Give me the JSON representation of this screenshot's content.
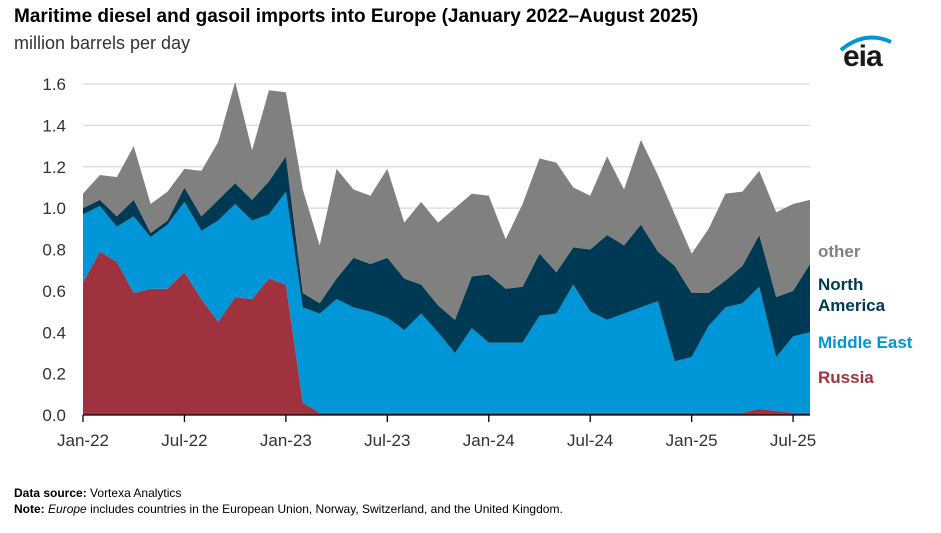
{
  "chart_data": {
    "type": "area",
    "stacked": true,
    "title": "Maritime diesel and gasoil imports into Europe (January 2022–August 2025)",
    "ylabel": "million barrels per day",
    "xlabel": "",
    "ylim": [
      0,
      1.6
    ],
    "yticks": [
      "0.0",
      "0.2",
      "0.4",
      "0.6",
      "0.8",
      "1.0",
      "1.2",
      "1.4",
      "1.6"
    ],
    "xtick_labels": [
      "Jan-22",
      "Jul-22",
      "Jan-23",
      "Jul-23",
      "Jan-24",
      "Jul-24",
      "Jan-25",
      "Jul-25"
    ],
    "x_start": "Jan-2022",
    "x_end": "Aug-2025",
    "grid": true,
    "legend_placement": "right",
    "series": [
      {
        "name": "Russia",
        "color": "#a0323f",
        "values": [
          0.64,
          0.79,
          0.74,
          0.59,
          0.61,
          0.61,
          0.69,
          0.56,
          0.45,
          0.57,
          0.56,
          0.66,
          0.63,
          0.06,
          0.01,
          0.01,
          0.01,
          0.01,
          0.01,
          0.01,
          0.01,
          0.01,
          0.01,
          0.01,
          0.01,
          0.01,
          0.01,
          0.01,
          0.01,
          0.01,
          0.01,
          0.01,
          0.01,
          0.01,
          0.01,
          0.01,
          0.01,
          0.01,
          0.01,
          0.01,
          0.03,
          0.02,
          0.01,
          0.01
        ]
      },
      {
        "name": "Middle East",
        "color": "#0096d7",
        "values": [
          0.33,
          0.22,
          0.17,
          0.37,
          0.25,
          0.31,
          0.34,
          0.33,
          0.49,
          0.45,
          0.38,
          0.31,
          0.45,
          0.46,
          0.48,
          0.55,
          0.51,
          0.49,
          0.46,
          0.4,
          0.48,
          0.39,
          0.29,
          0.41,
          0.34,
          0.34,
          0.34,
          0.47,
          0.48,
          0.62,
          0.49,
          0.45,
          0.48,
          0.51,
          0.54,
          0.25,
          0.27,
          0.42,
          0.51,
          0.53,
          0.59,
          0.26,
          0.37,
          0.39
        ]
      },
      {
        "name": "North America",
        "color": "#003953",
        "values": [
          0.03,
          0.03,
          0.05,
          0.08,
          0.02,
          0.02,
          0.07,
          0.07,
          0.1,
          0.1,
          0.1,
          0.16,
          0.17,
          0.07,
          0.05,
          0.1,
          0.24,
          0.23,
          0.29,
          0.25,
          0.14,
          0.13,
          0.16,
          0.25,
          0.33,
          0.26,
          0.27,
          0.3,
          0.2,
          0.18,
          0.3,
          0.41,
          0.33,
          0.4,
          0.24,
          0.46,
          0.31,
          0.16,
          0.13,
          0.18,
          0.25,
          0.29,
          0.22,
          0.33
        ]
      },
      {
        "name": "other",
        "color": "#808080",
        "values": [
          0.07,
          0.12,
          0.19,
          0.26,
          0.14,
          0.14,
          0.09,
          0.22,
          0.28,
          0.49,
          0.24,
          0.44,
          0.31,
          0.5,
          0.28,
          0.53,
          0.33,
          0.33,
          0.43,
          0.27,
          0.4,
          0.4,
          0.54,
          0.4,
          0.38,
          0.24,
          0.4,
          0.46,
          0.53,
          0.29,
          0.26,
          0.38,
          0.27,
          0.41,
          0.37,
          0.25,
          0.19,
          0.31,
          0.42,
          0.36,
          0.31,
          0.41,
          0.42,
          0.31
        ]
      }
    ]
  },
  "legend": {
    "other": "other",
    "north_america_1": "North",
    "north_america_2": "America",
    "middle_east": "Middle East",
    "russia": "Russia"
  },
  "logo": {
    "text": "eia",
    "icon": "eia-logo-arc"
  },
  "footer": {
    "source_label": "Data source:",
    "source_text": "Vortexa Analytics",
    "note_label": "Note:",
    "note_em": "Europe",
    "note_text": "includes countries in the European Union, Norway, Switzerland, and the United Kingdom."
  }
}
